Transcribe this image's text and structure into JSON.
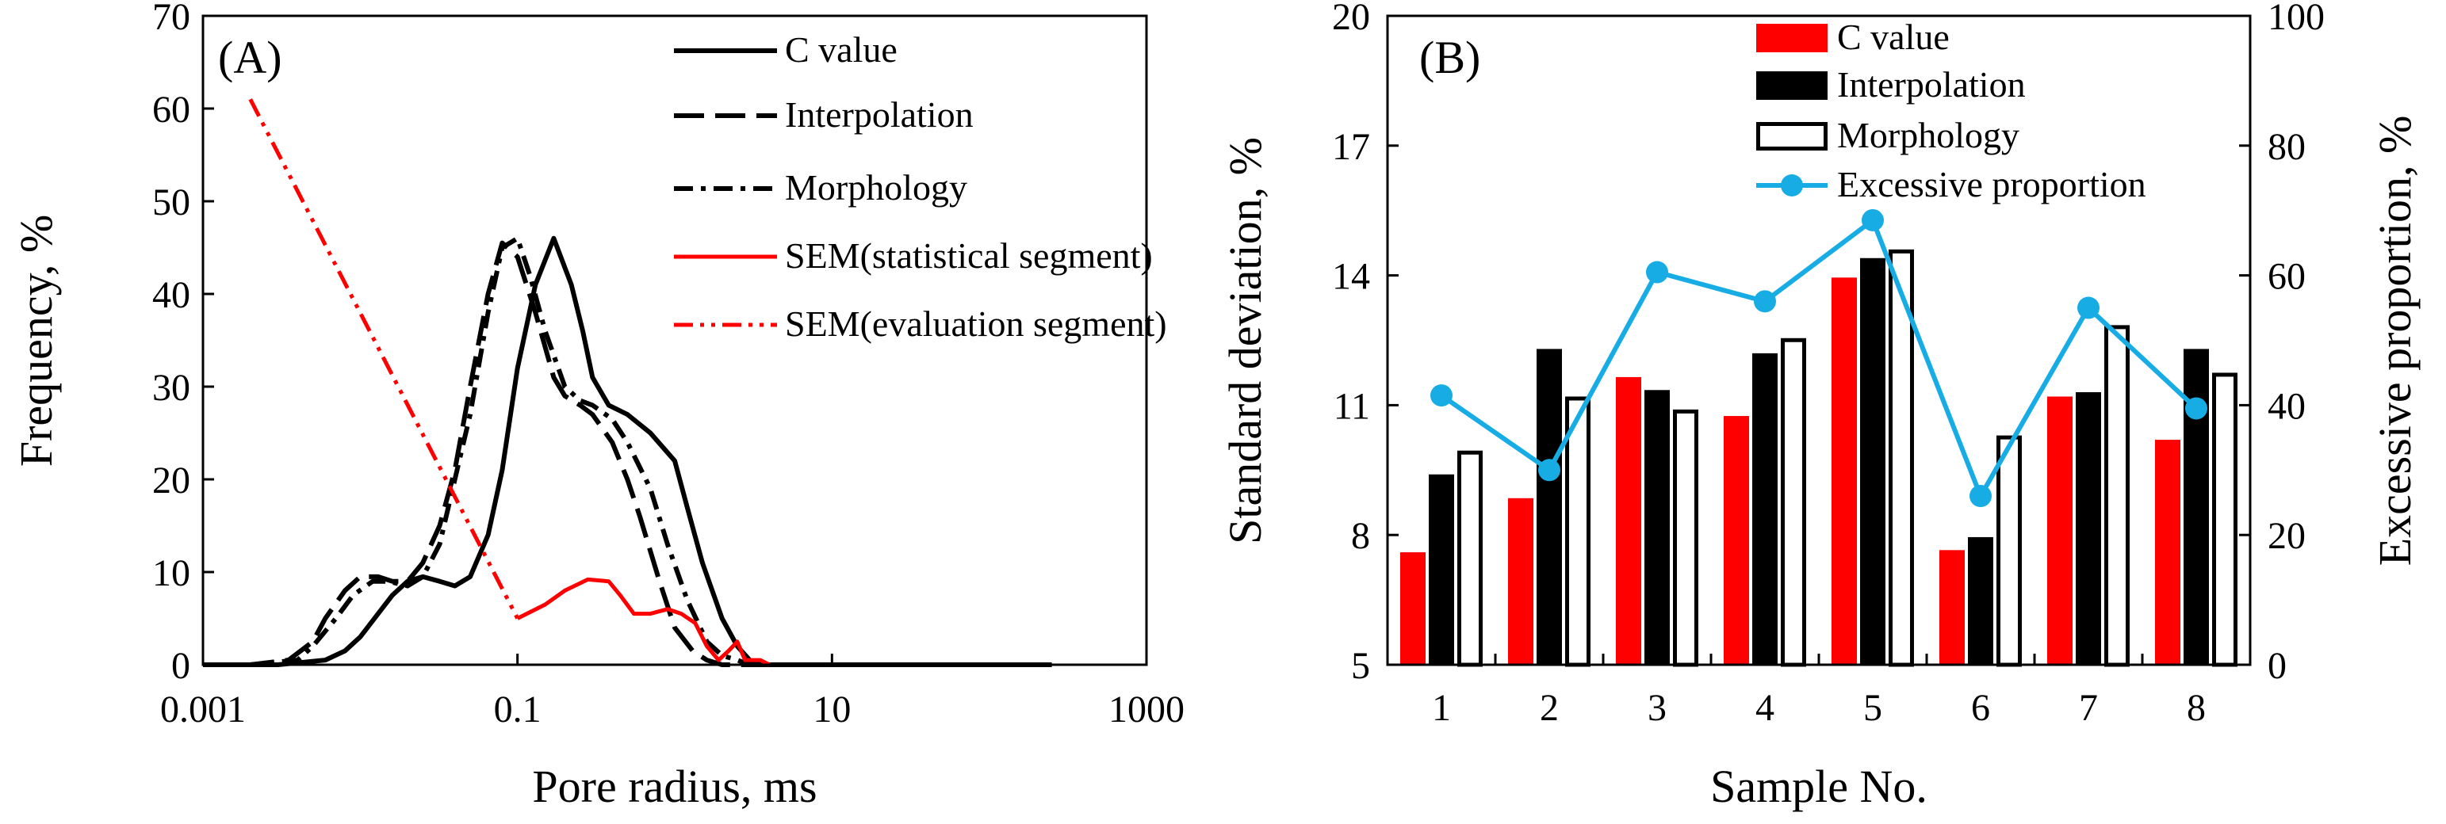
{
  "chart_data": [
    {
      "type": "line",
      "panel_label": "(A)",
      "xlabel": "Pore radius, ms",
      "ylabel": "Frequency, %",
      "xscale": "log",
      "xlim": [
        0.001,
        1000
      ],
      "ylim": [
        0,
        70
      ],
      "xticks": [
        0.001,
        0.1,
        10,
        1000
      ],
      "xtick_labels": [
        "0.001",
        "0.1",
        "10",
        "1000"
      ],
      "yticks": [
        0,
        10,
        20,
        30,
        40,
        50,
        60,
        70
      ],
      "ytick_labels": [
        "0",
        "10",
        "20",
        "30",
        "40",
        "50",
        "60",
        "70"
      ],
      "legend_position": "top-right",
      "series": [
        {
          "name": "C value",
          "style": "solid",
          "color": "#000000",
          "x": [
            0.001,
            0.003,
            0.006,
            0.008,
            0.01,
            0.013,
            0.016,
            0.02,
            0.025,
            0.032,
            0.04,
            0.05,
            0.065,
            0.08,
            0.1,
            0.13,
            0.17,
            0.22,
            0.26,
            0.3,
            0.38,
            0.5,
            0.7,
            1.0,
            1.2,
            1.5,
            2.0,
            2.5,
            3.0,
            3.5,
            4.0,
            5.0,
            7.0,
            10,
            100,
            250
          ],
          "y": [
            0,
            0,
            0.5,
            1.5,
            3,
            5.5,
            7.5,
            9,
            9.5,
            9,
            8.5,
            9.5,
            14,
            21,
            32,
            41,
            46,
            41,
            36,
            31,
            28,
            27,
            25,
            22,
            17,
            11,
            5,
            2,
            0.5,
            0,
            0,
            0,
            0,
            0,
            0,
            0
          ]
        },
        {
          "name": "Interpolation",
          "style": "dashed",
          "color": "#000000",
          "x": [
            0.001,
            0.002,
            0.0035,
            0.005,
            0.006,
            0.008,
            0.01,
            0.013,
            0.016,
            0.02,
            0.025,
            0.032,
            0.04,
            0.05,
            0.065,
            0.08,
            0.1,
            0.13,
            0.17,
            0.2,
            0.25,
            0.3,
            0.4,
            0.5,
            0.6,
            0.8,
            1.0,
            1.3,
            1.6,
            2.0,
            2.5,
            3.0,
            5.0,
            10
          ],
          "y": [
            0,
            0,
            0.5,
            2.5,
            5,
            8,
            9.5,
            9.5,
            9,
            9,
            11,
            15,
            21,
            30,
            40,
            45.5,
            44,
            38,
            31,
            29,
            28,
            27,
            24,
            20,
            16,
            9,
            4,
            1.5,
            0.5,
            0,
            0,
            0,
            0,
            0
          ]
        },
        {
          "name": "Morphology",
          "style": "dashdot",
          "color": "#000000",
          "x": [
            0.001,
            0.002,
            0.004,
            0.005,
            0.007,
            0.009,
            0.012,
            0.015,
            0.02,
            0.025,
            0.032,
            0.04,
            0.05,
            0.065,
            0.08,
            0.1,
            0.12,
            0.15,
            0.2,
            0.25,
            0.3,
            0.4,
            0.5,
            0.7,
            0.9,
            1.2,
            1.6,
            2.0,
            2.5,
            3.0,
            4.0,
            10
          ],
          "y": [
            0,
            0,
            0.5,
            2,
            5,
            7.5,
            9,
            9,
            8.5,
            9.5,
            13,
            20,
            27,
            38,
            45,
            46,
            42,
            36,
            30,
            28.5,
            28,
            26.5,
            24,
            19,
            13,
            7,
            2.5,
            1,
            0.5,
            0,
            0,
            0
          ]
        },
        {
          "name": "SEM(statistical segment)",
          "style": "solid",
          "color": "#ff0000",
          "x": [
            0.1,
            0.15,
            0.2,
            0.28,
            0.38,
            0.45,
            0.55,
            0.7,
            0.9,
            1.1,
            1.35,
            1.6,
            1.9,
            2.2,
            2.5,
            2.8,
            3.1,
            3.5,
            4.0
          ],
          "y": [
            5,
            6.5,
            8,
            9.2,
            9,
            7.5,
            5.5,
            5.5,
            6,
            5.5,
            4.5,
            2,
            0.5,
            1.5,
            2.5,
            0.5,
            0.5,
            0.5,
            0
          ]
        },
        {
          "name": "SEM(evaluation segment)",
          "style": "dashdotdot",
          "color": "#ff0000",
          "x": [
            0.002,
            0.1
          ],
          "y": [
            61,
            5
          ]
        }
      ]
    },
    {
      "type": "bar",
      "panel_label": "(B)",
      "xlabel": "Sample No.",
      "ylabel": "Standard deviation, %",
      "y2label": "Excessive proportion, %",
      "categories": [
        "1",
        "2",
        "3",
        "4",
        "5",
        "6",
        "7",
        "8"
      ],
      "ylim": [
        5,
        20
      ],
      "yticks": [
        5,
        8,
        11,
        14,
        17,
        20
      ],
      "ytick_labels": [
        "5",
        "8",
        "11",
        "14",
        "17",
        "20"
      ],
      "y2lim": [
        0,
        100
      ],
      "y2ticks": [
        0,
        20,
        40,
        60,
        80,
        100
      ],
      "y2tick_labels": [
        "0",
        "20",
        "40",
        "60",
        "80",
        "100"
      ],
      "legend_position": "top-center",
      "series": [
        {
          "name": "C value",
          "color": "#ff0000",
          "values": [
            7.6,
            8.85,
            11.65,
            10.75,
            13.95,
            7.65,
            11.2,
            10.2
          ]
        },
        {
          "name": "Interpolation",
          "color": "#000000",
          "values": [
            9.4,
            12.3,
            11.35,
            12.2,
            14.4,
            7.95,
            11.3,
            12.3
          ]
        },
        {
          "name": "Morphology",
          "color": "#ffffff",
          "edge_color": "#000000",
          "values": [
            9.95,
            11.2,
            10.9,
            12.55,
            14.6,
            10.3,
            12.85,
            11.75
          ]
        },
        {
          "name": "Excessive proportion",
          "type": "line",
          "axis": "right",
          "color": "#17ade4",
          "values": [
            41.5,
            30,
            60.5,
            56,
            68.5,
            26,
            55,
            39.5
          ]
        }
      ]
    }
  ]
}
